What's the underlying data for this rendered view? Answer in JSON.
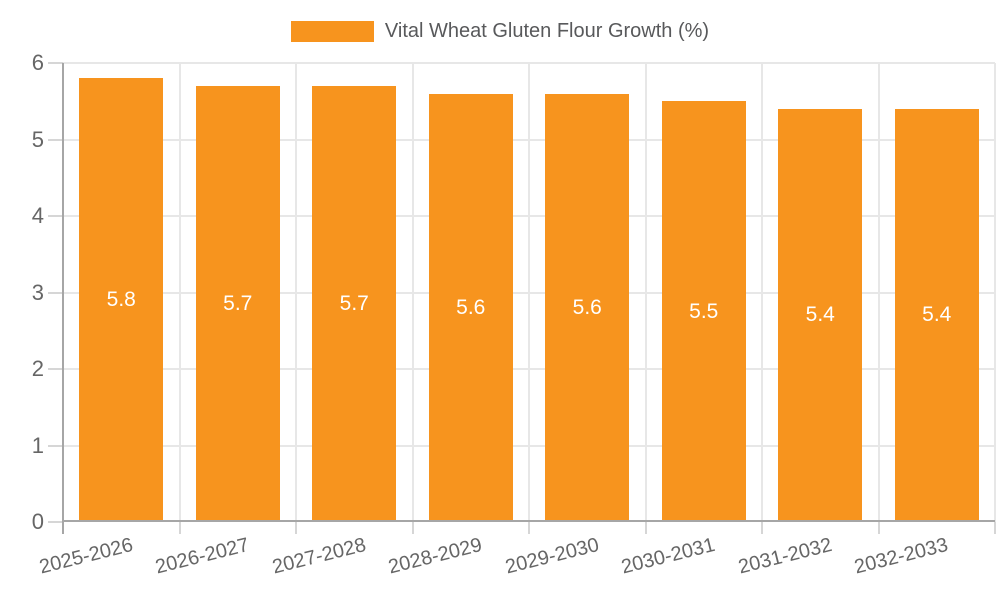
{
  "chart_data": {
    "type": "bar",
    "title": "",
    "series_name": "Vital Wheat Gluten Flour Growth (%)",
    "categories": [
      "2025-2026",
      "2026-2027",
      "2027-2028",
      "2028-2029",
      "2029-2030",
      "2030-2031",
      "2031-2032",
      "2032-2033"
    ],
    "values": [
      5.8,
      5.7,
      5.7,
      5.6,
      5.6,
      5.5,
      5.4,
      5.4
    ],
    "value_labels": [
      "5.8",
      "5.7",
      "5.7",
      "5.6",
      "5.6",
      "5.5",
      "5.4",
      "5.4"
    ],
    "ylim": [
      0,
      6
    ],
    "yticks": [
      0,
      1,
      2,
      3,
      4,
      5,
      6
    ],
    "ytick_labels": [
      "0",
      "1",
      "2",
      "3",
      "4",
      "5",
      "6"
    ],
    "xlabel": "",
    "ylabel": "",
    "grid": true,
    "legend_position": "top-center",
    "x_label_rotation_deg": -14,
    "colors": {
      "bar": "#F7941E",
      "value_label": "#FFFFFF",
      "axis_label": "#666666",
      "legend_text": "#58595B",
      "grid": "#E7E7E7",
      "tick": "#D6D6D6",
      "axis_line": "#A6A6A6",
      "background": "#FFFFFF"
    }
  }
}
